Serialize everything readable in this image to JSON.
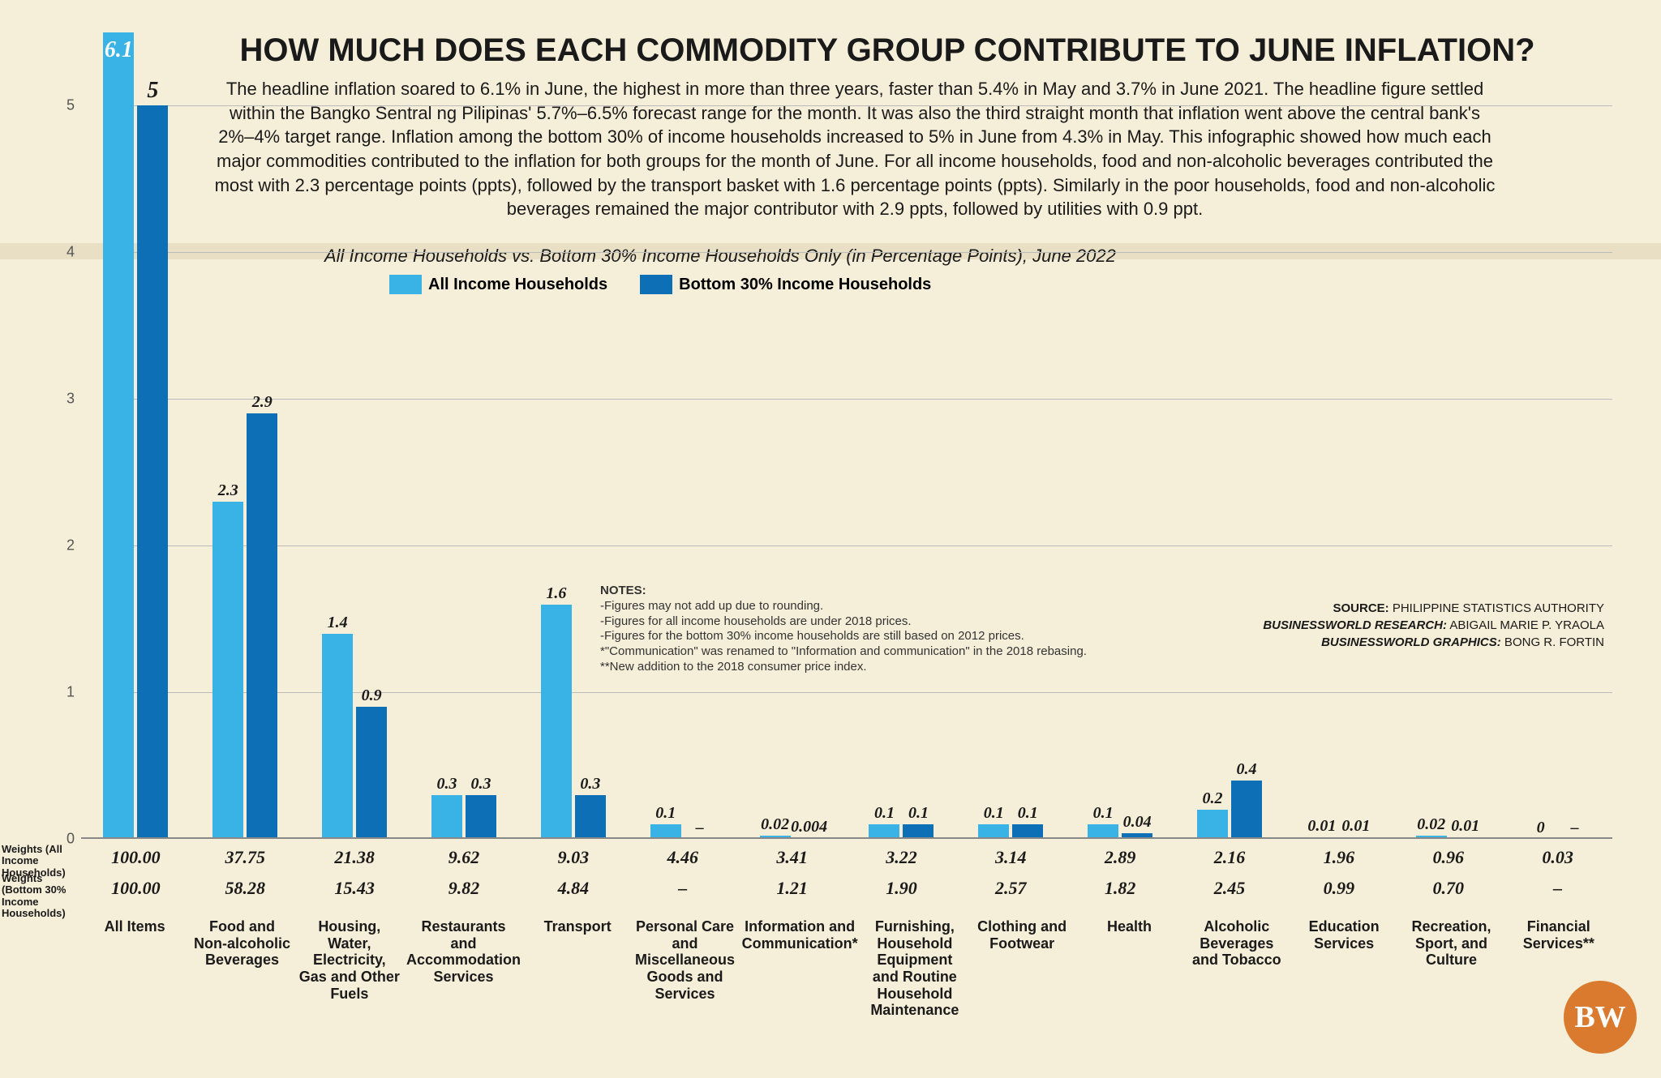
{
  "title": "HOW MUCH DOES EACH COMMODITY GROUP CONTRIBUTE TO JUNE INFLATION?",
  "title_fontsize": 40,
  "description": "The headline inflation soared to 6.1% in June, the highest in more than three years, faster than 5.4% in May and 3.7% in June 2021. The headline figure settled within the Bangko Sentral ng Pilipinas' 5.7%–6.5% forecast range for the month. It was also the third straight month that inflation went above the central bank's 2%–4% target range. Inflation among the bottom 30% of income households increased to 5% in June from 4.3% in May. This infographic showed how much each major commodities contributed to the inflation for both groups for the month of June. For all income households, food and non-alcoholic beverages contributed the most with 2.3 percentage points (ppts), followed by the transport basket with 1.6 percentage points (ppts). Similarly in the poor households, food and non-alcoholic beverages remained the major contributor with 2.9 ppts, followed by utilities with 0.9 ppt.",
  "description_fontsize": 22,
  "subtitle": "All Income Households vs. Bottom 30% Income Households Only (in Percentage Points), June 2022",
  "subtitle_fontsize": 22,
  "legend": {
    "series1": "All Income Households",
    "series2": "Bottom 30% Income Households",
    "fontsize": 20
  },
  "chart": {
    "type": "grouped-bar",
    "ymax": 5.5,
    "ytick_step": 1,
    "yticks": [
      0,
      1,
      2,
      3,
      4,
      5
    ],
    "ytick_fontsize": 18,
    "bar_label_fontsize": 20,
    "first_bar_label_fontsize": 28,
    "cat_label_fontsize": 18,
    "weight_fontsize": 22,
    "colors": {
      "series1": "#39b3e6",
      "series2": "#0d70b7",
      "background": "#f5eed8",
      "grid": "#bbbbbb",
      "text": "#1a1a1a"
    },
    "categories": [
      {
        "label": "All Items",
        "s1": 6.1,
        "s2": 5.0,
        "w1": "100.00",
        "w2": "100.00"
      },
      {
        "label": "Food and Non-alcoholic Beverages",
        "s1": 2.3,
        "s2": 2.9,
        "w1": "37.75",
        "w2": "58.28"
      },
      {
        "label": "Housing, Water, Electricity, Gas and Other Fuels",
        "s1": 1.4,
        "s2": 0.9,
        "w1": "21.38",
        "w2": "15.43"
      },
      {
        "label": "Restaurants and Accommodation Services",
        "s1": 0.3,
        "s2": 0.3,
        "w1": "9.62",
        "w2": "9.82"
      },
      {
        "label": "Transport",
        "s1": 1.6,
        "s2": 0.3,
        "w1": "9.03",
        "w2": "4.84"
      },
      {
        "label": "Personal Care and Miscellaneous Goods and Services",
        "s1": 0.1,
        "s2": null,
        "w1": "4.46",
        "w2": "–"
      },
      {
        "label": "Information and Communication*",
        "s1": 0.02,
        "s2": 0.004,
        "w1": "3.41",
        "w2": "1.21"
      },
      {
        "label": "Furnishing, Household Equipment and Routine Household Maintenance",
        "s1": 0.1,
        "s2": 0.1,
        "w1": "3.22",
        "w2": "1.90"
      },
      {
        "label": "Clothing and Footwear",
        "s1": 0.1,
        "s2": 0.1,
        "w1": "3.14",
        "w2": "2.57"
      },
      {
        "label": "Health",
        "s1": 0.1,
        "s2": 0.04,
        "w1": "2.89",
        "w2": "1.82"
      },
      {
        "label": "Alcoholic Beverages and Tobacco",
        "s1": 0.2,
        "s2": 0.4,
        "w1": "2.16",
        "w2": "2.45"
      },
      {
        "label": "Education Services",
        "s1": 0.01,
        "s2": 0.01,
        "w1": "1.96",
        "w2": "0.99"
      },
      {
        "label": "Recreation, Sport, and Culture",
        "s1": 0.02,
        "s2": 0.01,
        "w1": "0.96",
        "w2": "0.70"
      },
      {
        "label": "Financial Services**",
        "s1": 0.0,
        "s2": null,
        "w1": "0.03",
        "w2": "–"
      }
    ],
    "weight_row_labels": {
      "w1": "Weights (All Income Households)",
      "w2": "Weights (Bottom 30% Income Households)",
      "fontsize": 13
    }
  },
  "notes": {
    "heading": "NOTES:",
    "lines": [
      "-Figures may not add up due to rounding.",
      "-Figures for all income households are under 2018 prices.",
      "-Figures for the bottom 30% income households are still based on 2012 prices.",
      "*\"Communication\" was renamed to \"Information and communication\" in the 2018 rebasing.",
      "**New addition to the 2018 consumer price index."
    ],
    "fontsize": 15
  },
  "credits": {
    "source_label": "SOURCE:",
    "source": "PHILIPPINE STATISTICS AUTHORITY",
    "research_label": "BUSINESSWORLD RESEARCH:",
    "research": "ABIGAIL MARIE P. YRAOLA",
    "graphics_label": "BUSINESSWORLD GRAPHICS:",
    "graphics": "BONG R. FORTIN",
    "fontsize": 15
  },
  "logo": "BW"
}
